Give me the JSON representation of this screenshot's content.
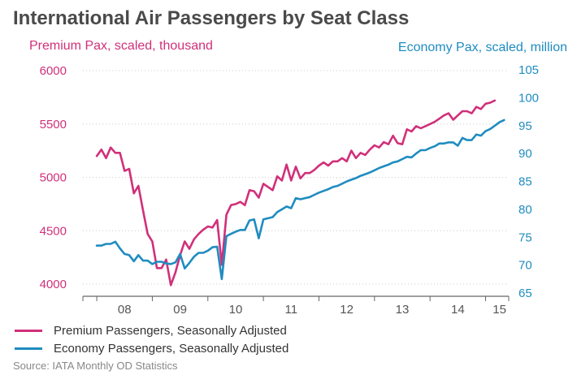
{
  "colors": {
    "premium": "#d0307a",
    "economy": "#1f8cc0",
    "title": "#4a4a4a",
    "axis": "#666666",
    "grid": "#cccccc"
  },
  "chart_data": {
    "type": "line",
    "title": "International Air Passengers by Seat Class",
    "xlabel": "",
    "ylabel_left": "Premium Pax, scaled, thousand",
    "ylabel_right": "Economy Pax, scaled, million",
    "x_tick_labels": [
      "08",
      "09",
      "10",
      "11",
      "12",
      "13",
      "14",
      "15"
    ],
    "x_tick_years": [
      2008,
      2009,
      2010,
      2011,
      2012,
      2013,
      2014,
      2015
    ],
    "xlim": [
      "2007-10",
      "2015-06"
    ],
    "ylim_left": [
      3950,
      6000
    ],
    "yticks_left": [
      4000,
      4500,
      5000,
      5500,
      6000
    ],
    "ylim_right": [
      65,
      105
    ],
    "yticks_right": [
      65,
      70,
      75,
      80,
      85,
      90,
      95,
      100,
      105
    ],
    "grid": "horizontal dotted",
    "legend_position": "bottom-left",
    "series": [
      {
        "name": "Premium Passengers, Seasonally Adjusted",
        "axis": "left",
        "x": [
          "2008-01",
          "2008-02",
          "2008-03",
          "2008-04",
          "2008-05",
          "2008-06",
          "2008-07",
          "2008-08",
          "2008-09",
          "2008-10",
          "2008-11",
          "2008-12",
          "2009-01",
          "2009-02",
          "2009-03",
          "2009-04",
          "2009-05",
          "2009-06",
          "2009-07",
          "2009-08",
          "2009-09",
          "2009-10",
          "2009-11",
          "2009-12",
          "2010-01",
          "2010-02",
          "2010-03",
          "2010-04",
          "2010-05",
          "2010-06",
          "2010-07",
          "2010-08",
          "2010-09",
          "2010-10",
          "2010-11",
          "2010-12",
          "2011-01",
          "2011-02",
          "2011-03",
          "2011-04",
          "2011-05",
          "2011-06",
          "2011-07",
          "2011-08",
          "2011-09",
          "2011-10",
          "2011-11",
          "2011-12",
          "2012-01",
          "2012-02",
          "2012-03",
          "2012-04",
          "2012-05",
          "2012-06",
          "2012-07",
          "2012-08",
          "2012-09",
          "2012-10",
          "2012-11",
          "2012-12",
          "2013-01",
          "2013-02",
          "2013-03",
          "2013-04",
          "2013-05",
          "2013-06",
          "2013-07",
          "2013-08",
          "2013-09",
          "2013-10",
          "2013-11",
          "2013-12",
          "2014-01",
          "2014-02",
          "2014-03",
          "2014-04",
          "2014-05",
          "2014-06",
          "2014-07",
          "2014-08",
          "2014-09",
          "2014-10",
          "2014-11",
          "2014-12",
          "2015-01",
          "2015-02",
          "2015-03"
        ],
        "values": [
          5200,
          5260,
          5180,
          5280,
          5230,
          5230,
          5060,
          5080,
          4850,
          4920,
          4690,
          4470,
          4400,
          4150,
          4150,
          4230,
          3990,
          4110,
          4270,
          4400,
          4330,
          4420,
          4470,
          4510,
          4540,
          4530,
          4600,
          4180,
          4650,
          4740,
          4750,
          4770,
          4740,
          4880,
          4870,
          4810,
          4940,
          4910,
          4880,
          5010,
          4970,
          5120,
          4970,
          5100,
          4990,
          5040,
          5040,
          5070,
          5110,
          5140,
          5110,
          5150,
          5150,
          5180,
          5150,
          5250,
          5180,
          5230,
          5210,
          5260,
          5300,
          5280,
          5330,
          5310,
          5390,
          5320,
          5310,
          5450,
          5430,
          5480,
          5460,
          5480,
          5500,
          5520,
          5550,
          5580,
          5600,
          5540,
          5580,
          5620,
          5620,
          5600,
          5660,
          5640,
          5690,
          5700,
          5720
        ]
      },
      {
        "name": "Economy Passengers, Seasonally Adjusted",
        "axis": "right",
        "x": [
          "2008-01",
          "2008-02",
          "2008-03",
          "2008-04",
          "2008-05",
          "2008-06",
          "2008-07",
          "2008-08",
          "2008-09",
          "2008-10",
          "2008-11",
          "2008-12",
          "2009-01",
          "2009-02",
          "2009-03",
          "2009-04",
          "2009-05",
          "2009-06",
          "2009-07",
          "2009-08",
          "2009-09",
          "2009-10",
          "2009-11",
          "2009-12",
          "2010-01",
          "2010-02",
          "2010-03",
          "2010-04",
          "2010-05",
          "2010-06",
          "2010-07",
          "2010-08",
          "2010-09",
          "2010-10",
          "2010-11",
          "2010-12",
          "2011-01",
          "2011-02",
          "2011-03",
          "2011-04",
          "2011-05",
          "2011-06",
          "2011-07",
          "2011-08",
          "2011-09",
          "2011-10",
          "2011-11",
          "2011-12",
          "2012-01",
          "2012-02",
          "2012-03",
          "2012-04",
          "2012-05",
          "2012-06",
          "2012-07",
          "2012-08",
          "2012-09",
          "2012-10",
          "2012-11",
          "2012-12",
          "2013-01",
          "2013-02",
          "2013-03",
          "2013-04",
          "2013-05",
          "2013-06",
          "2013-07",
          "2013-08",
          "2013-09",
          "2013-10",
          "2013-11",
          "2013-12",
          "2014-01",
          "2014-02",
          "2014-03",
          "2014-04",
          "2014-05",
          "2014-06",
          "2014-07",
          "2014-08",
          "2014-09",
          "2014-10",
          "2014-11",
          "2014-12",
          "2015-01",
          "2015-02",
          "2015-03",
          "2015-04",
          "2015-05"
        ],
        "values": [
          73.5,
          73.5,
          73.8,
          73.8,
          74.2,
          73.0,
          72.0,
          71.8,
          70.7,
          71.8,
          70.8,
          70.8,
          70.2,
          70.6,
          70.6,
          70.3,
          70.2,
          70.5,
          72.0,
          69.4,
          70.4,
          71.5,
          72.2,
          72.2,
          72.6,
          73.2,
          73.3,
          67.5,
          75.2,
          75.6,
          76.0,
          76.3,
          76.3,
          78.0,
          78.2,
          74.8,
          78.2,
          78.4,
          78.6,
          79.5,
          80.0,
          80.5,
          80.2,
          82.0,
          81.8,
          82.0,
          82.2,
          82.6,
          83.0,
          83.3,
          83.6,
          84.0,
          84.2,
          84.6,
          85.0,
          85.3,
          85.6,
          86.0,
          86.3,
          86.6,
          87.0,
          87.4,
          87.7,
          88.0,
          88.4,
          88.6,
          89.0,
          89.4,
          89.3,
          90.0,
          90.6,
          90.6,
          91.0,
          91.3,
          91.8,
          91.8,
          92.0,
          92.0,
          91.4,
          92.8,
          92.4,
          92.4,
          93.4,
          93.2,
          94.0,
          94.4,
          95.0,
          95.6,
          96.0
        ]
      }
    ]
  },
  "legend": {
    "premium_label": "Premium Passengers, Seasonally Adjusted",
    "economy_label": "Economy Passengers, Seasonally Adjusted"
  },
  "source": "Source: IATA Monthly OD Statistics"
}
